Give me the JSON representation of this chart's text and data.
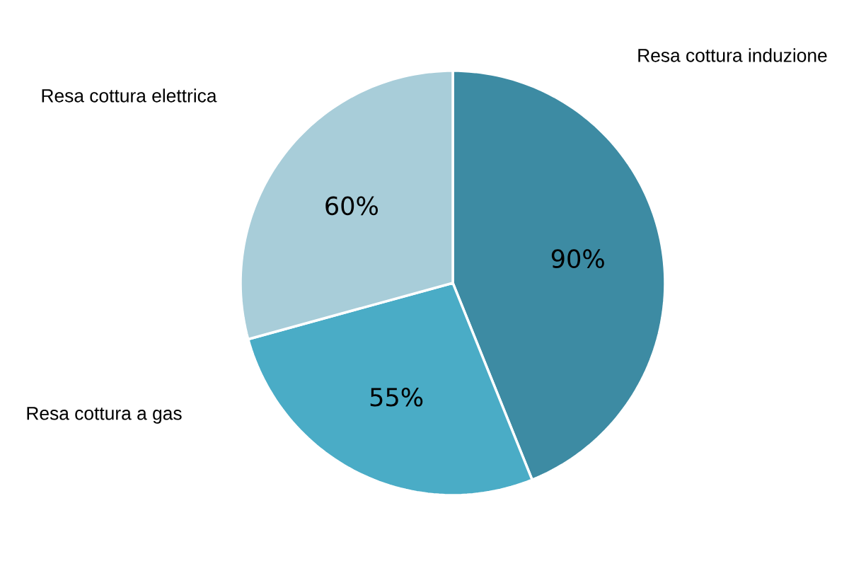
{
  "chart_data": {
    "type": "pie",
    "categories": [
      "Resa cottura induzione",
      "Resa cottura a gas",
      "Resa cottura elettrica"
    ],
    "values": [
      90,
      55,
      60
    ],
    "value_labels": [
      "90%",
      "55%",
      "60%"
    ],
    "colors": [
      "#3d8ba3",
      "#4aacc6",
      "#a8cdd9"
    ]
  }
}
